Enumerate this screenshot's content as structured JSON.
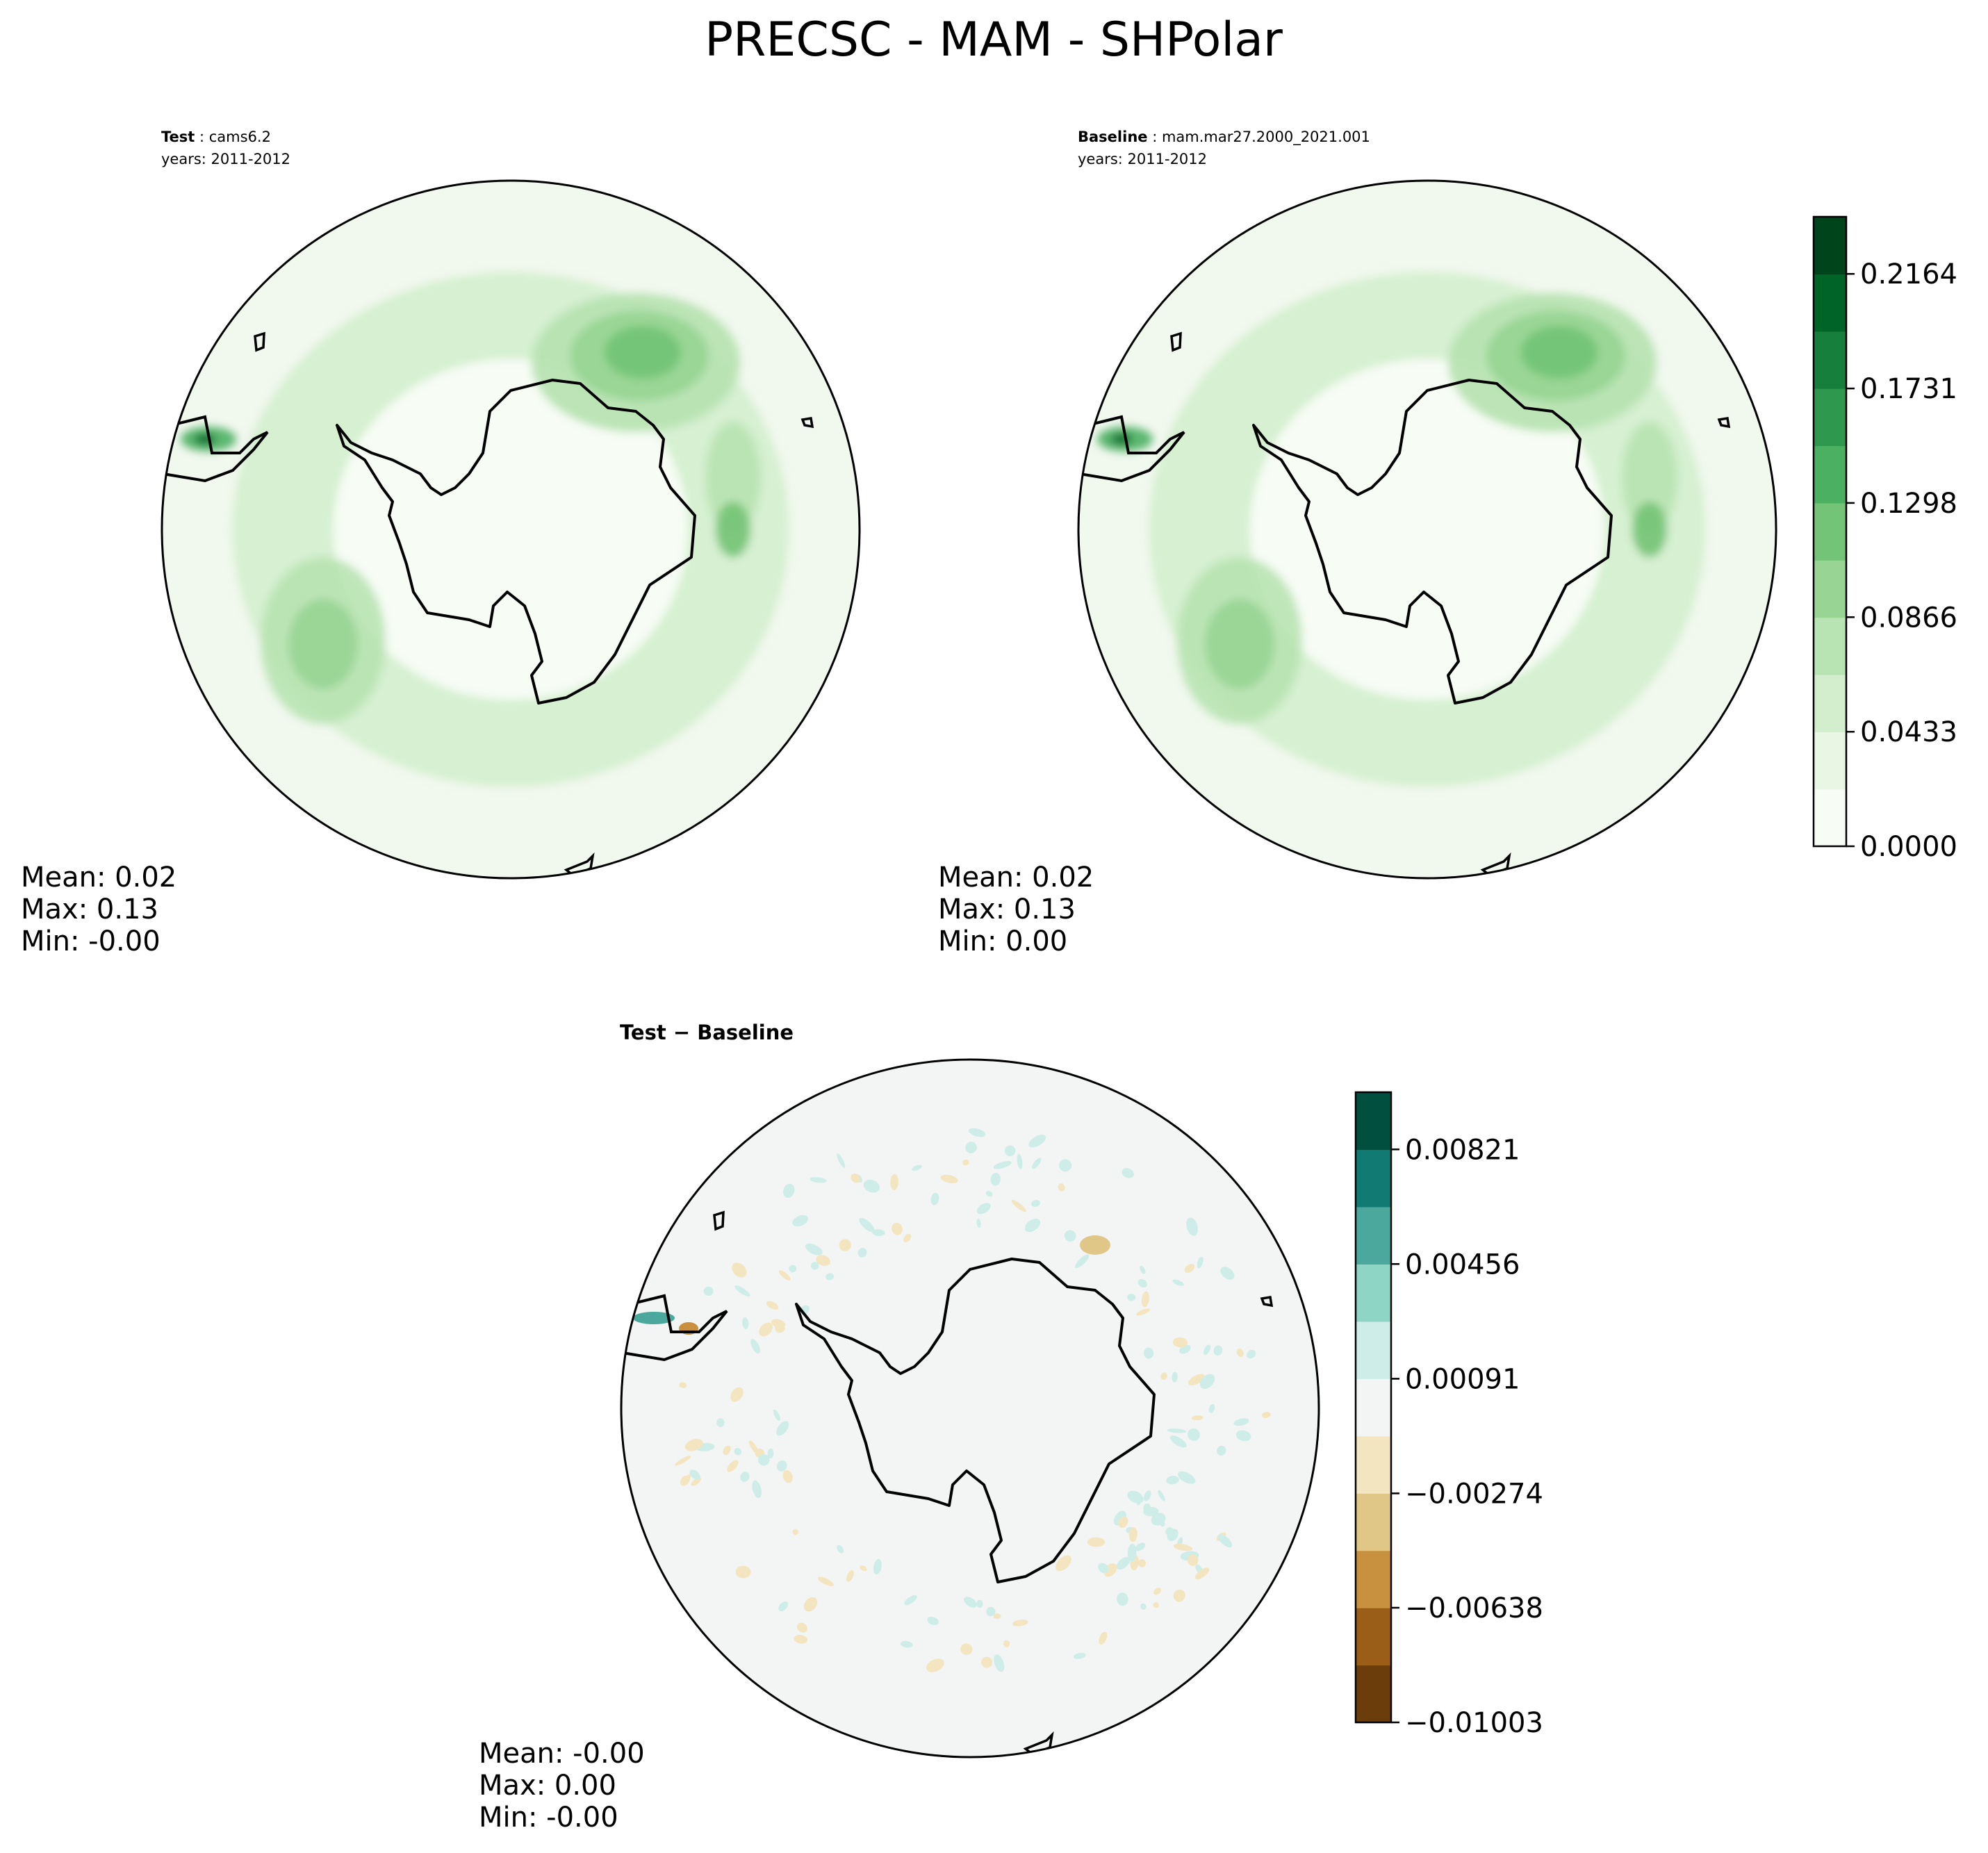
{
  "title": "PRECSC - MAM - SHPolar",
  "panels": [
    {
      "label_bold": "Test",
      "label_rest": " : cams6.2",
      "years": "years: 2011-2012",
      "stats": {
        "mean": "Mean:  0.02",
        "max": "Max:  0.13",
        "min": "Min: -0.00"
      }
    },
    {
      "label_bold": "Baseline",
      "label_rest": " : mam.mar27.2000_2021.001",
      "years": "years: 2011-2012",
      "stats": {
        "mean": "Mean:  0.02",
        "max": "Max:  0.13",
        "min": "Min:  0.00"
      }
    },
    {
      "label_bold": "Test − Baseline",
      "stats": {
        "mean": "Mean: -0.00",
        "max": "Max:  0.00",
        "min": "Min: -0.00"
      }
    }
  ],
  "chart_data": [
    {
      "type": "heatmap",
      "name": "test-map",
      "projection": "south-polar-stereographic",
      "stats": {
        "mean": 0.02,
        "max": 0.13,
        "min": -0.0
      }
    },
    {
      "type": "heatmap",
      "name": "baseline-map",
      "projection": "south-polar-stereographic",
      "stats": {
        "mean": 0.02,
        "max": 0.13,
        "min": 0.0
      }
    },
    {
      "type": "heatmap",
      "name": "difference-map",
      "projection": "south-polar-stereographic",
      "stats": {
        "mean": -0.0,
        "max": 0.0,
        "min": -0.0
      }
    }
  ],
  "colorbars": {
    "main": {
      "min": 0.0,
      "max": 0.238,
      "tick_values": [
        0.0,
        0.0433,
        0.0866,
        0.1298,
        0.1731,
        0.2164
      ],
      "tick_labels": [
        "0.0000",
        "0.0433",
        "0.0866",
        "0.1298",
        "0.1731",
        "0.2164"
      ],
      "colors": [
        "#f7fcf5",
        "#e8f6e3",
        "#d3eecd",
        "#b8e3b2",
        "#98d594",
        "#73c476",
        "#4bb062",
        "#2f984f",
        "#157f3b",
        "#006428",
        "#00441b"
      ]
    },
    "diff": {
      "min": -0.01003,
      "max": 0.01003,
      "tick_values": [
        -0.01003,
        -0.00638,
        -0.00274,
        0.00091,
        0.00456,
        0.00821
      ],
      "tick_labels": [
        "−0.01003",
        "−0.00638",
        "−0.00274",
        "0.00091",
        "0.00456",
        "0.00821"
      ],
      "colors": [
        "#6a3d0a",
        "#9b5e18",
        "#c8913f",
        "#e1c787",
        "#f4e5c1",
        "#f3f5f4",
        "#cfede8",
        "#8ed5c6",
        "#4aa89c",
        "#117a72",
        "#01503f"
      ]
    }
  },
  "colors": {
    "ocean_main": "#f1f8ee",
    "ocean_diff": "#f3f5f4",
    "coast": "#000000"
  }
}
